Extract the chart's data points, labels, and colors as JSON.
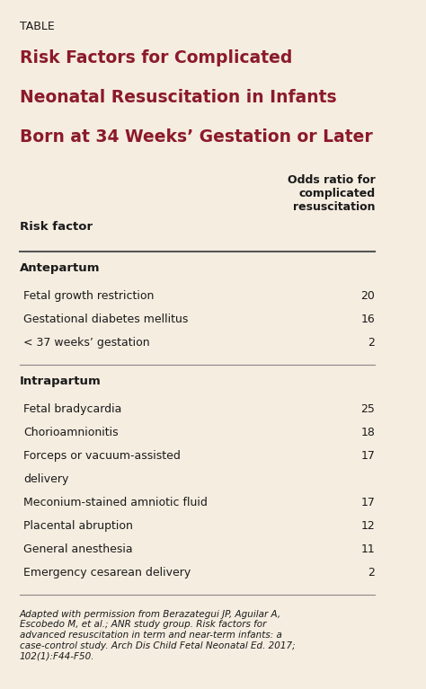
{
  "bg_color": "#f5ede0",
  "label_color": "#8b1a2b",
  "text_color": "#1a1a1a",
  "table_label": "TABLE",
  "title_line1": "Risk Factors for Complicated",
  "title_line2": "Neonatal Resuscitation in Infants",
  "title_line3": "Born at 34 Weeks’ Gestation or Later",
  "col1_header": "Risk factor",
  "col2_header": "Odds ratio for\ncomplicated\nresuscitation",
  "sections": [
    {
      "section_title": "Antepartum",
      "rows": [
        {
          "factor": "Fetal growth restriction",
          "value": "20"
        },
        {
          "factor": "Gestational diabetes mellitus",
          "value": "16"
        },
        {
          "factor": "< 37 weeks’ gestation",
          "value": "2"
        }
      ]
    },
    {
      "section_title": "Intrapartum",
      "rows": [
        {
          "factor": "Fetal bradycardia",
          "value": "25"
        },
        {
          "factor": "Chorioamnionitis",
          "value": "18"
        },
        {
          "factor": "Forceps or vacuum-assisted\ndelivery",
          "value": "17"
        },
        {
          "factor": "Meconium-stained amniotic fluid",
          "value": "17"
        },
        {
          "factor": "Placental abruption",
          "value": "12"
        },
        {
          "factor": "General anesthesia",
          "value": "11"
        },
        {
          "factor": "Emergency cesarean delivery",
          "value": "2"
        }
      ]
    }
  ],
  "footnote": "Adapted with permission from Berazategui JP, Aguilar A,\nEscobedo M, et al.; ANR study group. Risk factors for\nadvanced resuscitation in term and near-term infants: a\ncase-control study. Arch Dis Child Fetal Neonatal Ed. 2017;\n102(1):F44-F50."
}
